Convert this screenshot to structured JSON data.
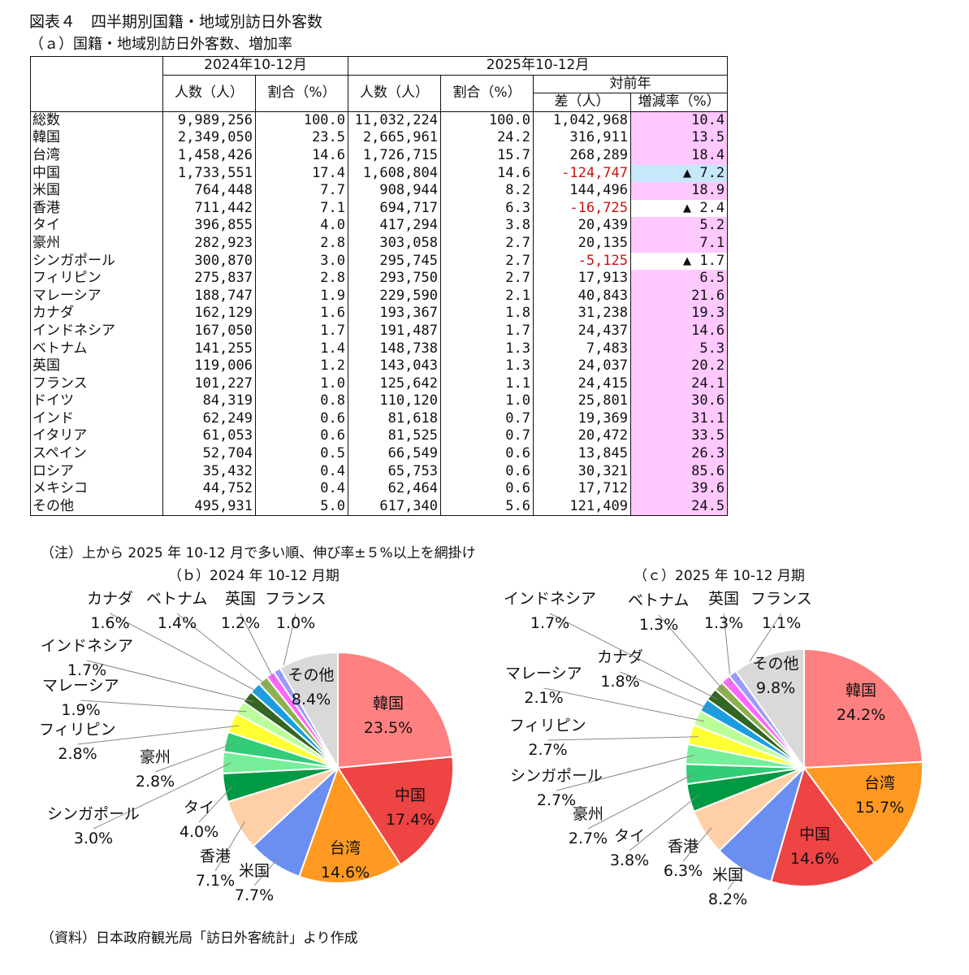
{
  "title": "図表４　四半期別国籍・地域別訪日外客数",
  "table_title": "（ａ）国籍・地域別訪日外客数、増加率",
  "table": {
    "period_2024": "2024年10-12月",
    "period_2025": "2025年10-12月",
    "yoy_header": "対前年",
    "col_people": "人数（人）",
    "col_share": "割合（%）",
    "col_diff": "差（人）",
    "col_rate": "増減率（%）",
    "rows": [
      {
        "name": "総数",
        "p24": "9,989,256",
        "s24": "100.0",
        "p25": "11,032,224",
        "s25": "100.0",
        "diff": "1,042,968",
        "rate": "10.4",
        "neg": false,
        "hl": "pink"
      },
      {
        "name": "韓国",
        "p24": "2,349,050",
        "s24": "23.5",
        "p25": "2,665,961",
        "s25": "24.2",
        "diff": "316,911",
        "rate": "13.5",
        "neg": false,
        "hl": "pink"
      },
      {
        "name": "台湾",
        "p24": "1,458,426",
        "s24": "14.6",
        "p25": "1,726,715",
        "s25": "15.7",
        "diff": "268,289",
        "rate": "18.4",
        "neg": false,
        "hl": "pink"
      },
      {
        "name": "中国",
        "p24": "1,733,551",
        "s24": "17.4",
        "p25": "1,608,804",
        "s25": "14.6",
        "diff": "-124,747",
        "rate": "▲ 7.2",
        "neg": true,
        "hl": "blue"
      },
      {
        "name": "米国",
        "p24": "764,448",
        "s24": "7.7",
        "p25": "908,944",
        "s25": "8.2",
        "diff": "144,496",
        "rate": "18.9",
        "neg": false,
        "hl": "pink"
      },
      {
        "name": "香港",
        "p24": "711,442",
        "s24": "7.1",
        "p25": "694,717",
        "s25": "6.3",
        "diff": "-16,725",
        "rate": "▲ 2.4",
        "neg": true,
        "hl": "none"
      },
      {
        "name": "タイ",
        "p24": "396,855",
        "s24": "4.0",
        "p25": "417,294",
        "s25": "3.8",
        "diff": "20,439",
        "rate": "5.2",
        "neg": false,
        "hl": "pink"
      },
      {
        "name": "豪州",
        "p24": "282,923",
        "s24": "2.8",
        "p25": "303,058",
        "s25": "2.7",
        "diff": "20,135",
        "rate": "7.1",
        "neg": false,
        "hl": "pink"
      },
      {
        "name": "シンガポール",
        "p24": "300,870",
        "s24": "3.0",
        "p25": "295,745",
        "s25": "2.7",
        "diff": "-5,125",
        "rate": "▲ 1.7",
        "neg": true,
        "hl": "none"
      },
      {
        "name": "フィリピン",
        "p24": "275,837",
        "s24": "2.8",
        "p25": "293,750",
        "s25": "2.7",
        "diff": "17,913",
        "rate": "6.5",
        "neg": false,
        "hl": "pink"
      },
      {
        "name": "マレーシア",
        "p24": "188,747",
        "s24": "1.9",
        "p25": "229,590",
        "s25": "2.1",
        "diff": "40,843",
        "rate": "21.6",
        "neg": false,
        "hl": "pink"
      },
      {
        "name": "カナダ",
        "p24": "162,129",
        "s24": "1.6",
        "p25": "193,367",
        "s25": "1.8",
        "diff": "31,238",
        "rate": "19.3",
        "neg": false,
        "hl": "pink"
      },
      {
        "name": "インドネシア",
        "p24": "167,050",
        "s24": "1.7",
        "p25": "191,487",
        "s25": "1.7",
        "diff": "24,437",
        "rate": "14.6",
        "neg": false,
        "hl": "pink"
      },
      {
        "name": "ベトナム",
        "p24": "141,255",
        "s24": "1.4",
        "p25": "148,738",
        "s25": "1.3",
        "diff": "7,483",
        "rate": "5.3",
        "neg": false,
        "hl": "pink"
      },
      {
        "name": "英国",
        "p24": "119,006",
        "s24": "1.2",
        "p25": "143,043",
        "s25": "1.3",
        "diff": "24,037",
        "rate": "20.2",
        "neg": false,
        "hl": "pink"
      },
      {
        "name": "フランス",
        "p24": "101,227",
        "s24": "1.0",
        "p25": "125,642",
        "s25": "1.1",
        "diff": "24,415",
        "rate": "24.1",
        "neg": false,
        "hl": "pink"
      },
      {
        "name": "ドイツ",
        "p24": "84,319",
        "s24": "0.8",
        "p25": "110,120",
        "s25": "1.0",
        "diff": "25,801",
        "rate": "30.6",
        "neg": false,
        "hl": "pink"
      },
      {
        "name": "インド",
        "p24": "62,249",
        "s24": "0.6",
        "p25": "81,618",
        "s25": "0.7",
        "diff": "19,369",
        "rate": "31.1",
        "neg": false,
        "hl": "pink"
      },
      {
        "name": "イタリア",
        "p24": "61,053",
        "s24": "0.6",
        "p25": "81,525",
        "s25": "0.7",
        "diff": "20,472",
        "rate": "33.5",
        "neg": false,
        "hl": "pink"
      },
      {
        "name": "スペイン",
        "p24": "52,704",
        "s24": "0.5",
        "p25": "66,549",
        "s25": "0.6",
        "diff": "13,845",
        "rate": "26.3",
        "neg": false,
        "hl": "pink"
      },
      {
        "name": "ロシア",
        "p24": "35,432",
        "s24": "0.4",
        "p25": "65,753",
        "s25": "0.6",
        "diff": "30,321",
        "rate": "85.6",
        "neg": false,
        "hl": "pink"
      },
      {
        "name": "メキシコ",
        "p24": "44,752",
        "s24": "0.4",
        "p25": "62,464",
        "s25": "0.6",
        "diff": "17,712",
        "rate": "39.6",
        "neg": false,
        "hl": "pink"
      },
      {
        "name": "その他",
        "p24": "495,931",
        "s24": "5.0",
        "p25": "617,340",
        "s25": "5.6",
        "diff": "121,409",
        "rate": "24.5",
        "neg": false,
        "hl": "pink"
      }
    ]
  },
  "note": "（注）上から 2025 年 10-12 月で多い順、伸び率±５%以上を網掛け",
  "source": "（資料）日本政府観光局「訪日外客統計」より作成",
  "colors": {
    "韓国": "#ff8080",
    "中国": "#ee4444",
    "台湾": "#ff9922",
    "米国": "#6a8ff0",
    "香港": "#ffd0a8",
    "タイ": "#009944",
    "豪州": "#33cc77",
    "シンガポール": "#77ee99",
    "フィリピン": "#ffff33",
    "マレーシア": "#bbff99",
    "インドネシア": "#336622",
    "カナダ": "#1a9ee0",
    "ベトナム": "#8db050",
    "英国": "#ff66ff",
    "フランス": "#9999ff",
    "その他": "#d9d9d9"
  },
  "chart_data": [
    {
      "type": "pie",
      "title": "（ｂ）2024 年 10-12 月期",
      "slices": [
        {
          "name": "韓国",
          "value": 23.5,
          "label": "23.5%"
        },
        {
          "name": "中国",
          "value": 17.4,
          "label": "17.4%"
        },
        {
          "name": "台湾",
          "value": 14.6,
          "label": "14.6%"
        },
        {
          "name": "米国",
          "value": 7.7,
          "label": "7.7%"
        },
        {
          "name": "香港",
          "value": 7.1,
          "label": "7.1%"
        },
        {
          "name": "タイ",
          "value": 4.0,
          "label": "4.0%"
        },
        {
          "name": "シンガポール",
          "value": 3.0,
          "label": "3.0%"
        },
        {
          "name": "豪州",
          "value": 2.8,
          "label": "2.8%"
        },
        {
          "name": "フィリピン",
          "value": 2.8,
          "label": "2.8%"
        },
        {
          "name": "マレーシア",
          "value": 1.9,
          "label": "1.9%"
        },
        {
          "name": "インドネシア",
          "value": 1.7,
          "label": "1.7%"
        },
        {
          "name": "カナダ",
          "value": 1.6,
          "label": "1.6%"
        },
        {
          "name": "ベトナム",
          "value": 1.4,
          "label": "1.4%"
        },
        {
          "name": "英国",
          "value": 1.2,
          "label": "1.2%"
        },
        {
          "name": "フランス",
          "value": 1.0,
          "label": "1.0%"
        },
        {
          "name": "その他",
          "value": 8.4,
          "label": "8.4%"
        }
      ]
    },
    {
      "type": "pie",
      "title": "（ｃ）2025 年 10-12 月期",
      "slices": [
        {
          "name": "韓国",
          "value": 24.2,
          "label": "24.2%"
        },
        {
          "name": "台湾",
          "value": 15.7,
          "label": "15.7%"
        },
        {
          "name": "中国",
          "value": 14.6,
          "label": "14.6%"
        },
        {
          "name": "米国",
          "value": 8.2,
          "label": "8.2%"
        },
        {
          "name": "香港",
          "value": 6.3,
          "label": "6.3%"
        },
        {
          "name": "タイ",
          "value": 3.8,
          "label": "3.8%"
        },
        {
          "name": "豪州",
          "value": 2.7,
          "label": "2.7%"
        },
        {
          "name": "シンガポール",
          "value": 2.7,
          "label": "2.7%"
        },
        {
          "name": "フィリピン",
          "value": 2.7,
          "label": "2.7%"
        },
        {
          "name": "マレーシア",
          "value": 2.1,
          "label": "2.1%"
        },
        {
          "name": "カナダ",
          "value": 1.8,
          "label": "1.8%"
        },
        {
          "name": "インドネシア",
          "value": 1.7,
          "label": "1.7%"
        },
        {
          "name": "ベトナム",
          "value": 1.3,
          "label": "1.3%"
        },
        {
          "name": "英国",
          "value": 1.3,
          "label": "1.3%"
        },
        {
          "name": "フランス",
          "value": 1.1,
          "label": "1.1%"
        },
        {
          "name": "その他",
          "value": 9.8,
          "label": "9.8%"
        }
      ]
    }
  ]
}
